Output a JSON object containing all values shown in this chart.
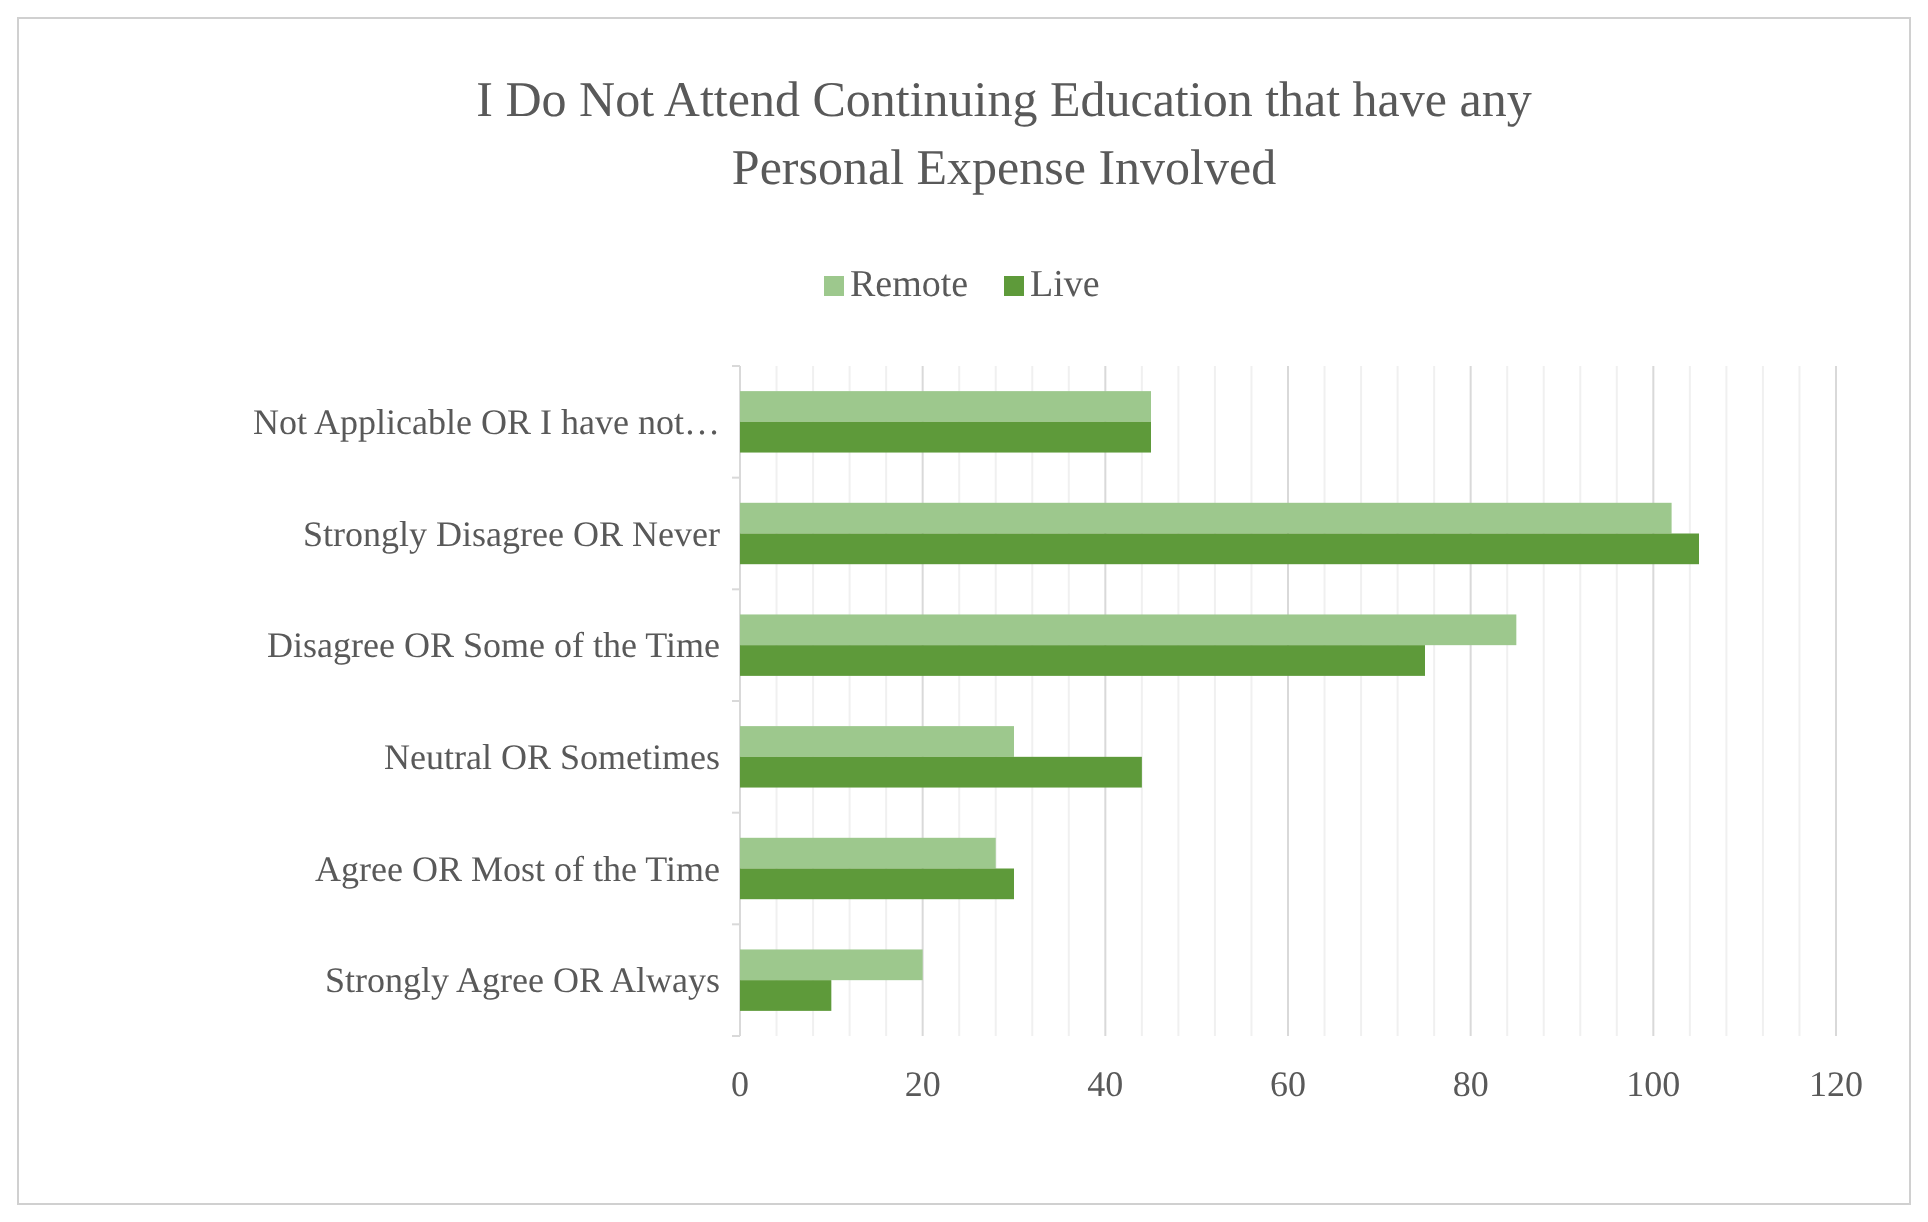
{
  "chart_data": {
    "type": "bar",
    "orientation": "horizontal",
    "title": "I Do Not Attend Continuing Education that have any Personal Expense Involved",
    "categories": [
      "Not Applicable OR I have not…",
      "Strongly Disagree OR Never",
      "Disagree OR Some of the Time",
      "Neutral OR Sometimes",
      "Agree OR Most of the Time",
      "Strongly Agree OR Always"
    ],
    "series": [
      {
        "name": "Remote",
        "color": "#9dc88d",
        "values": [
          45,
          102,
          85,
          30,
          28,
          20
        ]
      },
      {
        "name": "Live",
        "color": "#5e9a3a",
        "values": [
          45,
          105,
          75,
          44,
          30,
          10
        ]
      }
    ],
    "xlim": [
      0,
      120
    ],
    "xticks": [
      0,
      {
        "value": 4,
        "label": null
      },
      {
        "value": 8,
        "label": null
      },
      {
        "value": 12,
        "label": null
      },
      {
        "value": 16,
        "label": null
      },
      20,
      {
        "value": 24,
        "label": null
      },
      {
        "value": 28,
        "label": null
      },
      {
        "value": 32,
        "label": null
      },
      {
        "value": 36,
        "label": null
      },
      40,
      {
        "value": 44,
        "label": null
      },
      {
        "value": 48,
        "label": null
      },
      {
        "value": 52,
        "label": null
      },
      {
        "value": 56,
        "label": null
      },
      60,
      {
        "value": 64,
        "label": null
      },
      {
        "value": 68,
        "label": null
      },
      {
        "value": 72,
        "label": null
      },
      {
        "value": 76,
        "label": null
      },
      80,
      {
        "value": 84,
        "label": null
      },
      {
        "value": 88,
        "label": null
      },
      {
        "value": 92,
        "label": null
      },
      {
        "value": 96,
        "label": null
      },
      100,
      {
        "value": 104,
        "label": null
      },
      {
        "value": 108,
        "label": null
      },
      {
        "value": 112,
        "label": null
      },
      {
        "value": 116,
        "label": null
      },
      120
    ],
    "grid": "x",
    "legend": "top"
  }
}
